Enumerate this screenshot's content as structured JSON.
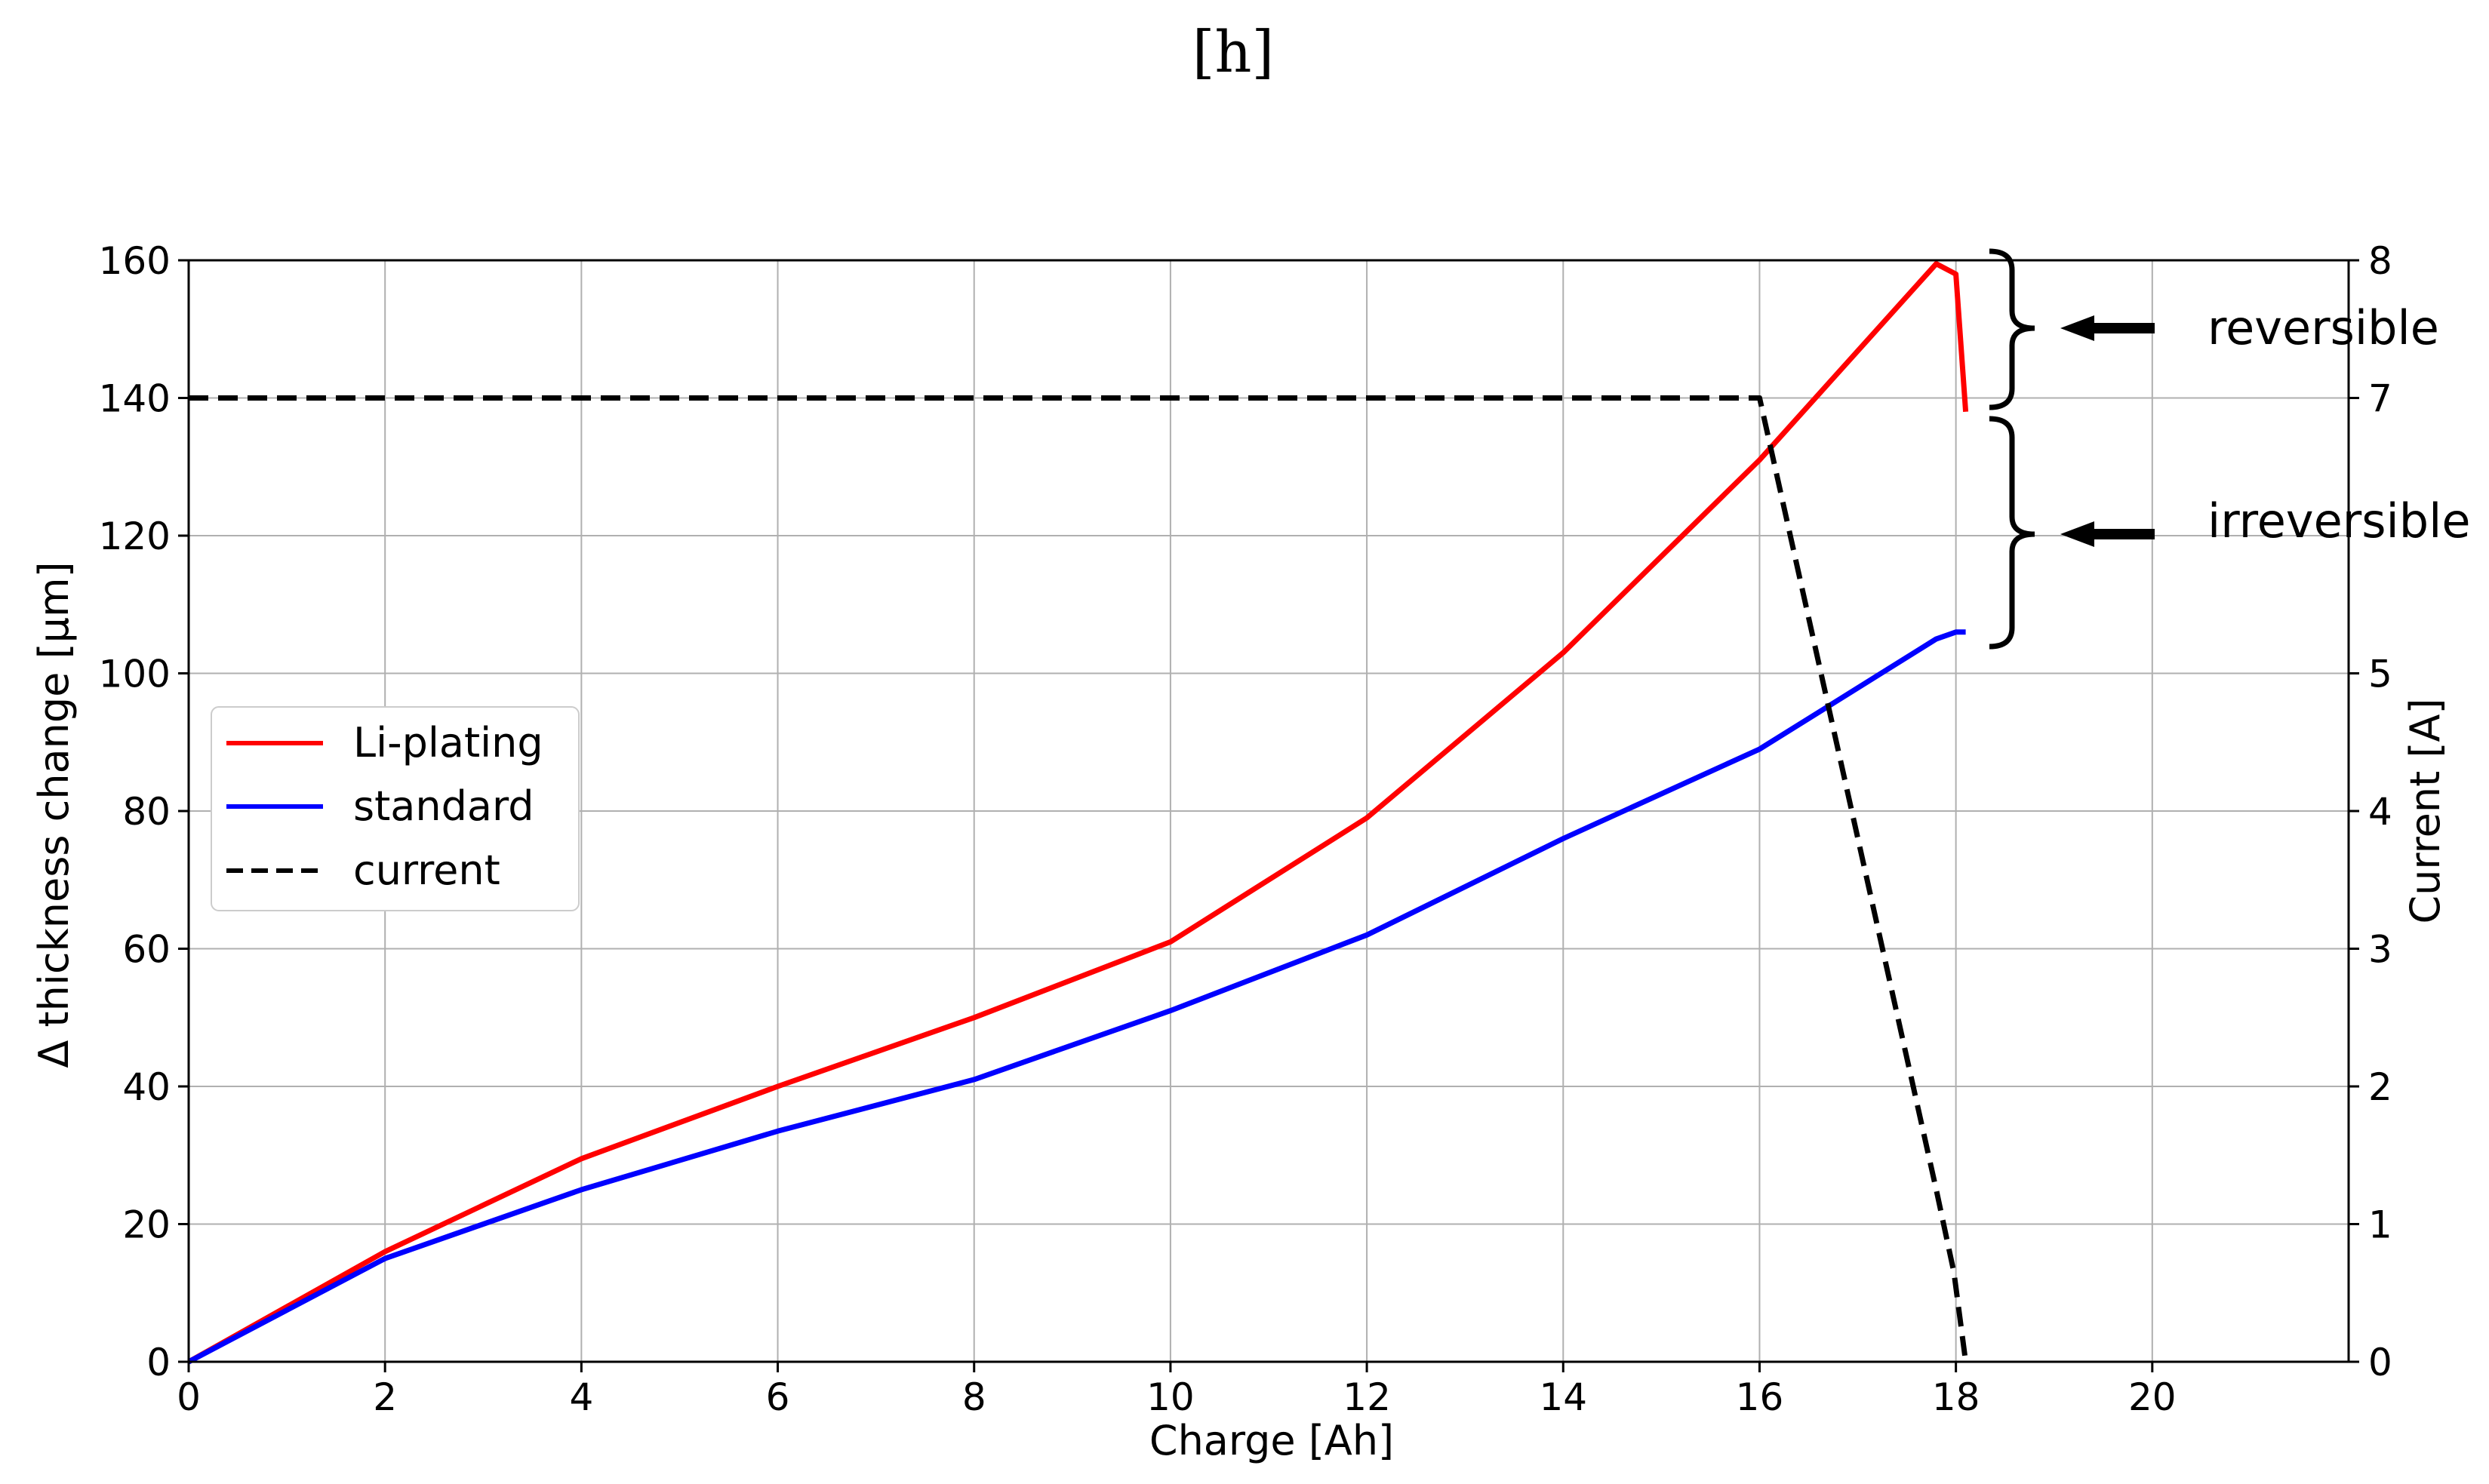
{
  "chart_data": {
    "type": "line",
    "panel_label": "[h]",
    "xlabel": "Charge [Ah]",
    "ylabel": "Δ thickness change [μm]",
    "y2label": "Current [A]",
    "xlim": [
      0,
      22
    ],
    "ylim": [
      0,
      160
    ],
    "y2lim": [
      0,
      8
    ],
    "xticks": [
      0,
      2,
      4,
      6,
      8,
      10,
      12,
      14,
      16,
      18,
      20
    ],
    "yticks": [
      0,
      20,
      40,
      60,
      80,
      100,
      120,
      140,
      160
    ],
    "y2ticks": [
      0,
      1,
      2,
      3,
      4,
      5,
      7,
      8
    ],
    "grid": true,
    "legend_position": "center-left",
    "series": [
      {
        "name": "Li-plating",
        "color": "#ff0000",
        "dash": "solid",
        "axis": "left",
        "x": [
          0,
          2,
          4,
          6,
          8,
          10,
          12,
          14,
          16,
          17.8,
          18.0,
          18.1
        ],
        "y": [
          0,
          16,
          29.5,
          40,
          50,
          61,
          79,
          103,
          131,
          159.5,
          158,
          138
        ]
      },
      {
        "name": "standard",
        "color": "#0000ff",
        "dash": "solid",
        "axis": "left",
        "x": [
          0,
          2,
          4,
          6,
          8,
          10,
          12,
          14,
          16,
          17.8,
          18.0,
          18.1
        ],
        "y": [
          0,
          15,
          25,
          33.5,
          41,
          51,
          62,
          76,
          89,
          105,
          106,
          106
        ]
      },
      {
        "name": "current",
        "color": "#000000",
        "dash": "dashed",
        "axis": "right",
        "x": [
          0,
          16,
          17.8,
          17.98,
          18.1
        ],
        "y": [
          7,
          7,
          1.25,
          0.65,
          0
        ]
      }
    ],
    "annotations": [
      {
        "text": "reversible",
        "y_range": [
          138,
          160
        ]
      },
      {
        "text": "irreversible",
        "y_range": [
          104,
          137
        ]
      }
    ]
  }
}
